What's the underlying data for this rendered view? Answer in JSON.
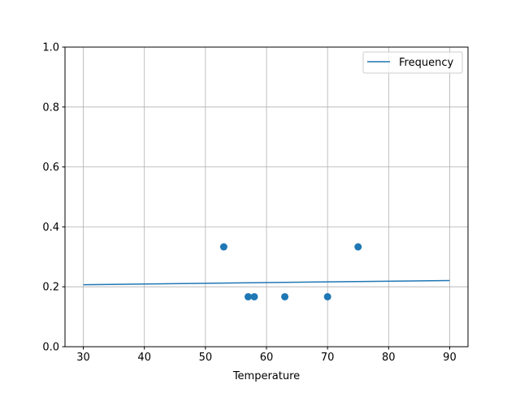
{
  "chart_data": {
    "type": "scatter",
    "title": "",
    "xlabel": "Temperature",
    "ylabel": "",
    "xlim": [
      27,
      93
    ],
    "ylim": [
      0,
      1
    ],
    "grid": true,
    "xticks": [
      30,
      40,
      50,
      60,
      70,
      80,
      90
    ],
    "yticks": [
      0.0,
      0.2,
      0.4,
      0.6,
      0.8,
      1.0
    ],
    "xtick_labels": [
      "30",
      "40",
      "50",
      "60",
      "70",
      "80",
      "90"
    ],
    "ytick_labels": [
      "0.0",
      "0.2",
      "0.4",
      "0.6",
      "0.8",
      "1.0"
    ],
    "scatter": {
      "x": [
        53,
        57,
        58,
        63,
        70,
        75
      ],
      "y": [
        0.3333,
        0.1667,
        0.1667,
        0.1667,
        0.1667,
        0.3333
      ],
      "color": "#1f77b4"
    },
    "line": {
      "name": "Frequency",
      "x": [
        30,
        90
      ],
      "y": [
        0.207,
        0.221
      ],
      "color": "#1f77b4"
    },
    "legend": {
      "placement": "top-right",
      "entries": [
        "Frequency"
      ]
    }
  }
}
